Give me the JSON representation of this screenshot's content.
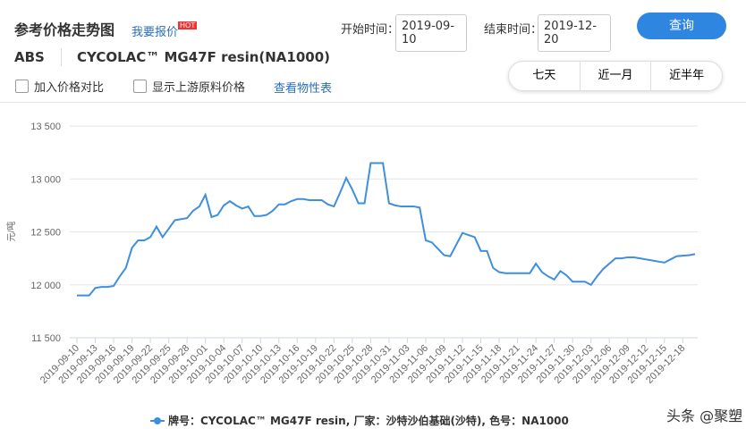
{
  "header": {
    "title": "参考价格走势图",
    "quote_link": "我要报价",
    "hot_badge": "HOT",
    "start_label": "开始时间：",
    "start_date": "2019-09-10",
    "end_label": "结束时间：",
    "end_date": "2019-12-20",
    "query_button": "查询",
    "category": "ABS",
    "product": "CYCOLAC™ MG47F resin(NA1000)",
    "compare_checkbox": "加入价格对比",
    "upstream_checkbox": "显示上游原料价格",
    "properties_link": "查看物性表",
    "range_tabs": [
      "七天",
      "近一月",
      "近半年"
    ]
  },
  "watermark": "头条 @聚塑",
  "chart_data": {
    "type": "line",
    "y_label": "元/吨",
    "categories": [
      "2019-09-10",
      null,
      null,
      "2019-09-13",
      null,
      null,
      "2019-09-16",
      null,
      null,
      "2019-09-19",
      null,
      null,
      "2019-09-22",
      null,
      null,
      "2019-09-25",
      null,
      null,
      "2019-09-28",
      null,
      null,
      "2019-10-01",
      null,
      null,
      "2019-10-04",
      null,
      null,
      "2019-10-07",
      null,
      null,
      "2019-10-10",
      null,
      null,
      "2019-10-13",
      null,
      null,
      "2019-10-16",
      null,
      null,
      "2019-10-19",
      null,
      null,
      "2019-10-22",
      null,
      null,
      "2019-10-25",
      null,
      null,
      "2019-10-28",
      null,
      null,
      "2019-10-31",
      null,
      null,
      "2019-11-03",
      null,
      null,
      "2019-11-06",
      null,
      null,
      "2019-11-09",
      null,
      null,
      "2019-11-12",
      null,
      null,
      "2019-11-15",
      null,
      null,
      "2019-11-18",
      null,
      null,
      "2019-11-21",
      null,
      null,
      "2019-11-24",
      null,
      null,
      "2019-11-27",
      null,
      null,
      "2019-11-30",
      null,
      null,
      "2019-12-03",
      null,
      null,
      "2019-12-06",
      null,
      null,
      "2019-12-09",
      null,
      null,
      "2019-12-12",
      null,
      null,
      "2019-12-15",
      null,
      null,
      "2019-12-18",
      null,
      null
    ],
    "series": [
      {
        "name": "牌号：CYCOLAC™ MG47F resin, 厂家：沙特沙伯基础(沙特), 色号：NA1000",
        "color": "#3f8fdc",
        "values": [
          11900,
          11900,
          11900,
          11970,
          11980,
          11980,
          11990,
          12080,
          12160,
          12350,
          12420,
          12420,
          12450,
          12550,
          12450,
          12530,
          12610,
          12620,
          12630,
          12700,
          12740,
          12850,
          12640,
          12660,
          12750,
          12790,
          12750,
          12720,
          12740,
          12650,
          12650,
          12660,
          12700,
          12760,
          12760,
          12790,
          12810,
          12810,
          12800,
          12800,
          12800,
          12760,
          12740,
          12870,
          13010,
          12900,
          12770,
          12770,
          13150,
          13150,
          13150,
          12770,
          12750,
          12740,
          12740,
          12740,
          12730,
          12420,
          12400,
          12340,
          12280,
          12270,
          12380,
          12490,
          12470,
          12450,
          12320,
          12320,
          12160,
          12120,
          12110,
          12110,
          12110,
          12110,
          12110,
          12200,
          12120,
          12080,
          12050,
          12130,
          12090,
          12030,
          12030,
          12030,
          12000,
          12080,
          12150,
          12200,
          12250,
          12250,
          12260,
          12260,
          12250,
          12240,
          12230,
          12220,
          12210,
          12240,
          12270,
          12275,
          12280,
          12290
        ]
      }
    ],
    "ylim": [
      11500,
      13500
    ],
    "yticks": [
      {
        "value": 11500,
        "label": "11 500"
      },
      {
        "value": 12000,
        "label": "12 000"
      },
      {
        "value": 12500,
        "label": "12 500"
      },
      {
        "value": 13000,
        "label": "13 000"
      },
      {
        "value": 13500,
        "label": "13 500"
      }
    ],
    "grid": true
  }
}
